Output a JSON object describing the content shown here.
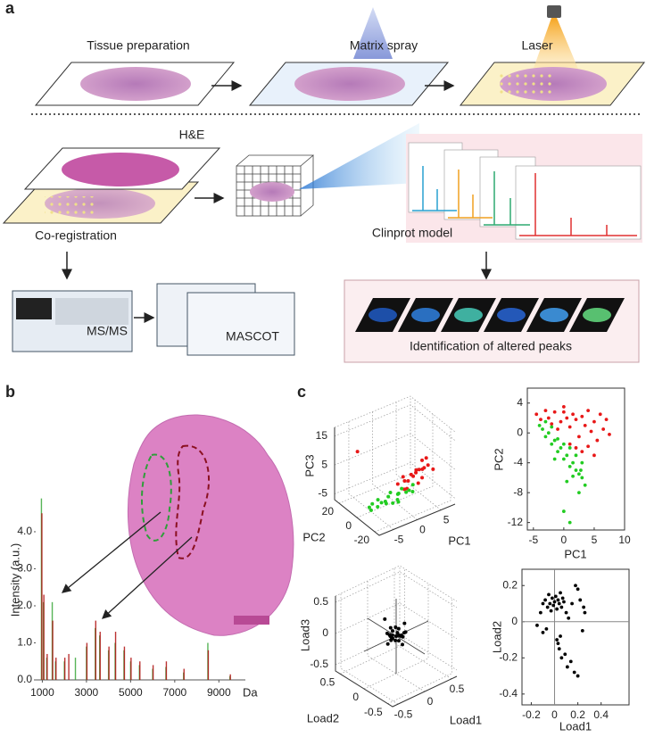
{
  "panel_labels": [
    "a",
    "b",
    "c"
  ],
  "panel_a": {
    "steps": [
      "Tissue preparation",
      "Matrix spray",
      "Laser"
    ],
    "he": "H&E",
    "coregistration": "Co-registration",
    "clinprot": "Clinprot model",
    "msms": "MS/MS",
    "mascot": "MASCOT",
    "identification": "Identification of altered peaks"
  },
  "chart_data": [
    {
      "type": "spectrum",
      "ylabel": "Intensity (a.u.)",
      "xlabel": "Da",
      "xlim": [
        700,
        10200
      ],
      "ylim": [
        0,
        5.3
      ],
      "xticks": [
        1000,
        3000,
        5000,
        7000,
        9000
      ],
      "yticks": [
        {
          "value": 0,
          "label": "0.0"
        },
        {
          "value": 1,
          "label": "1.0"
        },
        {
          "value": 2,
          "label": "2.0"
        },
        {
          "value": 3,
          "label": "3.0"
        },
        {
          "value": 4,
          "label": "4.0"
        }
      ],
      "series": [
        {
          "color": "#3aa83a",
          "x": [
            960,
            1050,
            1200,
            1450,
            1600,
            2000,
            2500,
            3000,
            3400,
            3600,
            4000,
            4300,
            4700,
            5000,
            5400,
            6000,
            6600,
            7400,
            8500,
            9500
          ],
          "values": [
            4.9,
            2.1,
            0.6,
            2.1,
            0.5,
            0.5,
            0.6,
            0.9,
            1.4,
            1.2,
            0.8,
            1.0,
            0.8,
            0.5,
            0.4,
            0.3,
            0.35,
            0.2,
            1.0,
            0.1
          ]
        },
        {
          "color": "#b01010",
          "x": [
            980,
            1070,
            1220,
            1470,
            1620,
            2020,
            2200,
            3020,
            3420,
            3620,
            4020,
            4320,
            4720,
            5020,
            5420,
            6020,
            6620,
            7420,
            8520,
            9520
          ],
          "values": [
            4.5,
            2.3,
            0.7,
            1.6,
            0.6,
            0.6,
            0.7,
            1.0,
            1.6,
            1.3,
            0.9,
            1.3,
            0.9,
            0.6,
            0.5,
            0.4,
            0.5,
            0.3,
            0.8,
            0.15
          ]
        }
      ]
    },
    {
      "type": "scatter3d",
      "xlabel": "PC1",
      "ylabel": "PC2",
      "zlabel": "PC3",
      "xlim": [
        -8,
        8
      ],
      "ylim": [
        -25,
        25
      ],
      "zlim": [
        -7,
        18
      ],
      "xticks": [
        -5,
        0,
        5
      ],
      "yticks": [
        -20,
        0,
        20
      ],
      "zticks": [
        -5,
        5,
        15
      ],
      "series": [
        {
          "color": "#e81818",
          "x": [
            -6,
            1,
            2,
            2.5,
            3,
            3.5,
            4,
            4.5,
            5,
            5.5,
            6,
            6.5,
            7,
            7.5,
            3,
            4,
            5,
            6,
            2,
            7
          ],
          "y": [
            10,
            2,
            -3,
            4,
            1,
            -2,
            3,
            0,
            -4,
            2,
            -1,
            4,
            0,
            -3,
            5,
            -5,
            3,
            1,
            0,
            2
          ],
          "z": [
            12,
            -2,
            -3,
            -1,
            -2,
            0,
            -1,
            1,
            -1,
            0,
            1,
            2,
            1,
            0,
            -3,
            -2,
            -1,
            0,
            -4,
            3
          ]
        },
        {
          "color": "#22cc22",
          "x": [
            -5,
            -4,
            -3,
            -2,
            -1,
            0,
            1,
            2,
            3,
            -4,
            -2,
            0,
            2,
            -3,
            -1,
            1,
            3,
            -5,
            4,
            0
          ],
          "y": [
            2,
            -2,
            3,
            -1,
            2,
            -3,
            1,
            -2,
            0,
            4,
            0,
            -4,
            3,
            -1,
            -3,
            2,
            -4,
            0,
            1,
            5
          ],
          "z": [
            -6,
            -5.5,
            -5,
            -6,
            -5,
            -5.5,
            -5,
            -4.5,
            -5,
            -6,
            -5.5,
            -6,
            -4.5,
            -5,
            -6,
            -5.5,
            -4.5,
            -6.5,
            -4,
            -5
          ]
        }
      ]
    },
    {
      "type": "scatter",
      "xlabel": "PC1",
      "ylabel": "PC2",
      "xlim": [
        -6,
        10
      ],
      "ylim": [
        -13,
        6
      ],
      "xticks": [
        -5,
        0,
        5,
        10
      ],
      "yticks": [
        4,
        0,
        -4,
        -8,
        -12
      ],
      "series": [
        {
          "color": "#e81818",
          "x": [
            -4.5,
            -3.8,
            -3,
            -2.5,
            -2,
            -1.5,
            -1,
            -0.5,
            0,
            0.5,
            1,
            1.5,
            2,
            2.5,
            3,
            3.5,
            4,
            4.5,
            5,
            5.5,
            6,
            6.5,
            7,
            7.5,
            2,
            1,
            3,
            4,
            5,
            0
          ],
          "values": [
            2.5,
            1.8,
            3,
            2,
            1.2,
            2.8,
            0.5,
            1.5,
            3.5,
            2,
            0.8,
            2.5,
            1.8,
            -0.5,
            2.2,
            1,
            3,
            0.2,
            1.5,
            -1,
            2.5,
            0.5,
            1.8,
            -0.2,
            -2,
            -1.5,
            -2.5,
            -1.8,
            -3,
            2.8
          ]
        },
        {
          "color": "#22cc22",
          "x": [
            -4,
            -3.5,
            -3,
            -2.5,
            -2,
            -1.5,
            -1,
            -0.5,
            0,
            0.5,
            1,
            1.5,
            2,
            2.5,
            3,
            3.5,
            -2,
            -1,
            0,
            1,
            2,
            3,
            -3,
            -1.5,
            0.5,
            1.5,
            2.5,
            0,
            1,
            2.8
          ],
          "values": [
            1,
            0.5,
            -0.5,
            0,
            -1.5,
            -1,
            -2.5,
            -2,
            -3.5,
            -3,
            -4.5,
            -4,
            -5,
            -5.5,
            -6,
            -7,
            0.8,
            -0.8,
            -1.5,
            -2,
            -3,
            -4,
            1.5,
            -3.5,
            -6.5,
            -5.8,
            -8,
            -10.5,
            -12,
            -5
          ]
        }
      ]
    },
    {
      "type": "scatter3d",
      "xlabel": "Load1",
      "ylabel": "Load2",
      "zlabel": "Load3",
      "xlim": [
        -0.6,
        0.6
      ],
      "ylim": [
        -0.6,
        0.6
      ],
      "zlim": [
        -0.6,
        0.6
      ],
      "xticks": [
        -0.5,
        0,
        0.5
      ],
      "yticks": [
        -0.5,
        0,
        0.5
      ],
      "zticks": [
        -0.5,
        0,
        0.5
      ],
      "origin_lines": true,
      "series": [
        {
          "color": "#000000",
          "x": [
            0,
            0.05,
            -0.05,
            0.1,
            -0.1,
            0.02,
            -0.02,
            0.08,
            -0.08,
            0.12,
            -0.12,
            0.04,
            -0.04,
            0.06,
            -0.06,
            0.15,
            -0.15,
            0.01,
            0.03,
            -0.03,
            0.07,
            -0.07,
            0.09,
            0.2,
            -0.2
          ],
          "y": [
            0,
            0.03,
            -0.04,
            0.06,
            -0.02,
            0.1,
            -0.08,
            -0.05,
            0.05,
            0.02,
            -0.06,
            0.12,
            -0.1,
            0.08,
            0.04,
            -0.03,
            0.07,
            -0.12,
            0.15,
            0.09,
            -0.09,
            0.11,
            0.01,
            0.05,
            -0.05
          ],
          "z": [
            0,
            0.02,
            -0.03,
            0.05,
            0.01,
            -0.04,
            0.06,
            -0.02,
            0.03,
            -0.05,
            0.04,
            0.01,
            -0.01,
            0.08,
            -0.06,
            0.02,
            0.3,
            -0.08,
            0.05,
            -0.03,
            0.07,
            0.02,
            -0.04,
            0.1,
            -0.02
          ]
        }
      ]
    },
    {
      "type": "scatter",
      "xlabel": "Load1",
      "ylabel": "Load2",
      "xlim": [
        -0.28,
        0.64
      ],
      "ylim": [
        -0.46,
        0.29
      ],
      "xticks": [
        -0.2,
        0,
        0.2,
        0.4
      ],
      "yticks": [
        0.2,
        0,
        -0.2,
        -0.4
      ],
      "zero_lines": true,
      "series": [
        {
          "color": "#000000",
          "x": [
            -0.15,
            -0.12,
            -0.1,
            -0.08,
            -0.06,
            -0.05,
            -0.04,
            -0.03,
            -0.02,
            -0.01,
            0,
            0.01,
            0.02,
            0.03,
            0.04,
            0.05,
            0.06,
            0.07,
            0.08,
            0.1,
            0.12,
            0.15,
            0.18,
            0.2,
            0.22,
            0.24,
            0.25,
            0.26,
            0.02,
            0.04,
            0.06,
            0.09,
            0.11,
            0.14,
            0.17,
            -0.1,
            -0.07,
            0.03,
            0.05,
            0.2
          ],
          "values": [
            -0.02,
            0.05,
            0.1,
            0.12,
            0.08,
            0.15,
            0.1,
            0.06,
            0.13,
            0.09,
            0.11,
            0.14,
            0.07,
            0.12,
            0.1,
            0.16,
            0.08,
            0.13,
            0.11,
            0.05,
            0.02,
            0.1,
            0.2,
            0.18,
            0.12,
            -0.05,
            0.08,
            0.05,
            -0.1,
            -0.15,
            -0.2,
            -0.18,
            -0.25,
            -0.22,
            -0.28,
            -0.06,
            -0.04,
            -0.12,
            -0.08,
            -0.3
          ]
        }
      ]
    }
  ]
}
